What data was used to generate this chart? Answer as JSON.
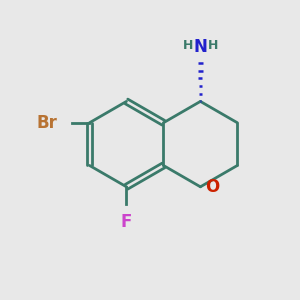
{
  "background_color": "#e8e8e8",
  "bond_color": "#3a7a6a",
  "bond_width": 2.0,
  "atom_colors": {
    "Br": "#b87333",
    "F": "#cc44cc",
    "O": "#cc2200",
    "N": "#2222cc",
    "H_on_N": "#3a7a6a"
  },
  "figsize": [
    3.0,
    3.0
  ],
  "dpi": 100
}
